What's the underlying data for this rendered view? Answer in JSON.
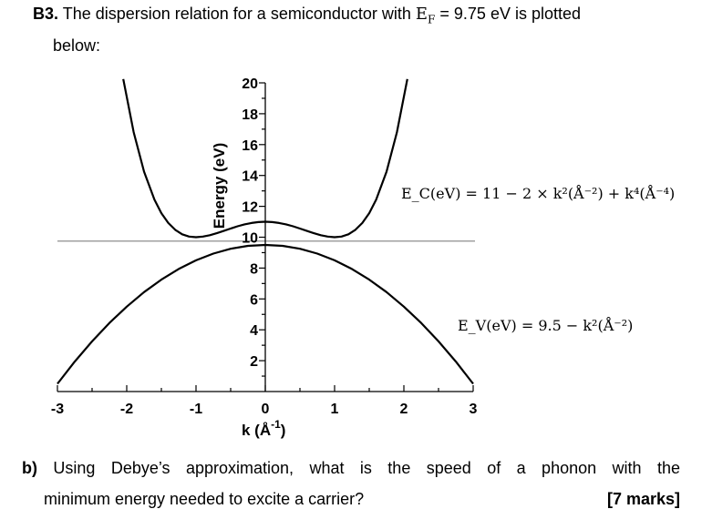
{
  "question": {
    "number": "B3.",
    "text_before": "The dispersion relation for a semiconductor with",
    "fermi_symbol": "E",
    "fermi_subscript": "F",
    "fermi_value": "= 9.75 eV is plotted",
    "text_cont": "below:"
  },
  "part_b": {
    "label": "b)",
    "line1": "Using Debye’s approximation, what is the speed of a phonon with the",
    "line2": "minimum energy needed to excite a carrier?",
    "marks": "[7 marks]"
  },
  "chart_data": {
    "type": "line",
    "title": "",
    "xlabel_main": "k (Å",
    "xlabel_sup": "-1",
    "xlabel_end": ")",
    "ylabel": "Energy (eV)",
    "xlim": [
      -3,
      3
    ],
    "ylim": [
      0,
      20
    ],
    "x_ticks": [
      "-3",
      "-2",
      "-1",
      "0",
      "1",
      "2",
      "3"
    ],
    "y_ticks": [
      "2",
      "4",
      "6",
      "8",
      "10",
      "12",
      "14",
      "16",
      "18",
      "20"
    ],
    "fermi_level": 9.75,
    "grid": false,
    "series": [
      {
        "equation": "E_C(eV) = 11 − 2 × k²(Å⁻²) + k⁴(Å⁻⁴)",
        "eq_text": "E_C(eV) = 11 − 2 × k²(Å⁻²) + k⁴(Å⁻⁴)",
        "x": [
          -2.05,
          -1.9,
          -1.75,
          -1.6,
          -1.5,
          -1.4,
          -1.3,
          -1.2,
          -1.1,
          -1.0,
          -0.9,
          -0.8,
          -0.7,
          -0.6,
          -0.5,
          -0.4,
          -0.3,
          -0.2,
          -0.1,
          0.0,
          0.1,
          0.2,
          0.3,
          0.4,
          0.5,
          0.6,
          0.7,
          0.8,
          0.9,
          1.0,
          1.1,
          1.2,
          1.3,
          1.4,
          1.5,
          1.6,
          1.75,
          1.9,
          2.05
        ],
        "y": [
          20.25,
          16.81,
          14.25,
          12.43,
          11.56,
          10.92,
          10.48,
          10.19,
          10.04,
          10.0,
          10.04,
          10.13,
          10.26,
          10.41,
          10.56,
          10.71,
          10.83,
          10.92,
          10.98,
          11.0,
          10.98,
          10.92,
          10.83,
          10.71,
          10.56,
          10.41,
          10.26,
          10.13,
          10.04,
          10.0,
          10.04,
          10.19,
          10.48,
          10.92,
          11.56,
          12.43,
          14.25,
          16.81,
          20.25
        ]
      },
      {
        "equation": "E_V(eV) = 9.5 − k²(Å⁻²)",
        "eq_text": "E_V(eV) = 9.5 − k²(Å⁻²)",
        "x": [
          -3.0,
          -2.75,
          -2.5,
          -2.25,
          -2.0,
          -1.75,
          -1.5,
          -1.25,
          -1.0,
          -0.75,
          -0.5,
          -0.25,
          0.0,
          0.25,
          0.5,
          0.75,
          1.0,
          1.25,
          1.5,
          1.75,
          2.0,
          2.25,
          2.5,
          2.75,
          3.0
        ],
        "y": [
          0.5,
          1.94,
          3.25,
          4.44,
          5.5,
          6.44,
          7.25,
          7.94,
          8.5,
          8.94,
          9.25,
          9.44,
          9.5,
          9.44,
          9.25,
          8.94,
          8.5,
          7.94,
          7.25,
          6.44,
          5.5,
          4.44,
          3.25,
          1.94,
          0.5
        ]
      }
    ],
    "colors": {
      "curve": "#000000",
      "fermi_line": "#a0a0a0"
    }
  }
}
